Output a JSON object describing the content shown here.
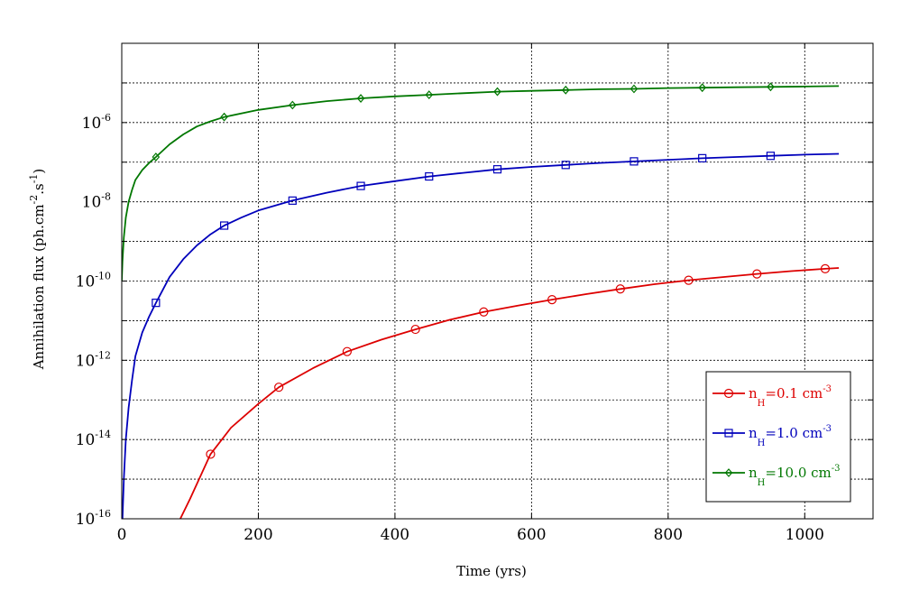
{
  "chart_data": {
    "type": "line",
    "xlabel": "Time (yrs)",
    "ylabel": "Annihilation flux (ph.cm",
    "ylabel_sup1": "-2",
    "ylabel_mid": ".s",
    "ylabel_sup2": "-1",
    "ylabel_end": ")",
    "y_scale": "log",
    "xlim": [
      0,
      1100
    ],
    "ylim": [
      1e-16,
      0.0001
    ],
    "x_ticks": [
      0,
      200,
      400,
      600,
      800,
      1000
    ],
    "x_tick_labels": [
      "0",
      "200",
      "400",
      "600",
      "800",
      "1000"
    ],
    "y_ticks": [
      -16,
      -14,
      -12,
      -10,
      -8,
      -6
    ],
    "y_tick_labels": [
      {
        "base": "10",
        "exp": "-16"
      },
      {
        "base": "10",
        "exp": "-14"
      },
      {
        "base": "10",
        "exp": "-12"
      },
      {
        "base": "10",
        "exp": "-10"
      },
      {
        "base": "10",
        "exp": "-8"
      },
      {
        "base": "10",
        "exp": "-6"
      }
    ],
    "grid": true,
    "legend_position": "bottom-right",
    "series": [
      {
        "name": "n_H=0.1 cm^-3",
        "legend": {
          "prefix": "n",
          "sub": "H",
          "main": "=0.1 cm",
          "sup": "-3"
        },
        "color": "#dd0000",
        "marker": "circle",
        "x": [
          130,
          230,
          330,
          430,
          530,
          630,
          730,
          830,
          930,
          1030
        ],
        "y": [
          -14.37,
          -12.68,
          -11.78,
          -11.22,
          -10.78,
          -10.47,
          -10.2,
          -9.98,
          -9.82,
          -9.69
        ],
        "curve": [
          [
            80,
            -16.2
          ],
          [
            100,
            -15.5
          ],
          [
            130,
            -14.37
          ],
          [
            160,
            -13.7
          ],
          [
            200,
            -13.1
          ],
          [
            230,
            -12.68
          ],
          [
            280,
            -12.2
          ],
          [
            330,
            -11.78
          ],
          [
            380,
            -11.48
          ],
          [
            430,
            -11.22
          ],
          [
            480,
            -10.98
          ],
          [
            530,
            -10.78
          ],
          [
            580,
            -10.62
          ],
          [
            630,
            -10.47
          ],
          [
            680,
            -10.33
          ],
          [
            730,
            -10.2
          ],
          [
            780,
            -10.08
          ],
          [
            830,
            -9.98
          ],
          [
            880,
            -9.9
          ],
          [
            930,
            -9.82
          ],
          [
            980,
            -9.75
          ],
          [
            1030,
            -9.69
          ],
          [
            1050,
            -9.67
          ]
        ]
      },
      {
        "name": "n_H=1.0 cm^-3",
        "legend": {
          "prefix": "n",
          "sub": "H",
          "main": "=1.0 cm",
          "sup": "-3"
        },
        "color": "#0000bb",
        "marker": "square",
        "x": [
          50,
          150,
          250,
          350,
          450,
          550,
          650,
          750,
          850,
          950
        ],
        "y": [
          -10.55,
          -8.6,
          -7.97,
          -7.6,
          -7.36,
          -7.18,
          -7.07,
          -6.98,
          -6.9,
          -6.84
        ],
        "curve": [
          [
            1,
            -16.0
          ],
          [
            3,
            -15.0
          ],
          [
            6,
            -14.0
          ],
          [
            10,
            -13.2
          ],
          [
            15,
            -12.5
          ],
          [
            20,
            -11.9
          ],
          [
            30,
            -11.3
          ],
          [
            40,
            -10.9
          ],
          [
            50,
            -10.55
          ],
          [
            70,
            -9.9
          ],
          [
            90,
            -9.45
          ],
          [
            110,
            -9.1
          ],
          [
            130,
            -8.82
          ],
          [
            150,
            -8.6
          ],
          [
            175,
            -8.4
          ],
          [
            200,
            -8.22
          ],
          [
            250,
            -7.97
          ],
          [
            300,
            -7.77
          ],
          [
            350,
            -7.6
          ],
          [
            400,
            -7.48
          ],
          [
            450,
            -7.36
          ],
          [
            500,
            -7.27
          ],
          [
            550,
            -7.18
          ],
          [
            600,
            -7.12
          ],
          [
            650,
            -7.07
          ],
          [
            700,
            -7.02
          ],
          [
            750,
            -6.98
          ],
          [
            800,
            -6.94
          ],
          [
            850,
            -6.9
          ],
          [
            900,
            -6.87
          ],
          [
            950,
            -6.84
          ],
          [
            1000,
            -6.81
          ],
          [
            1050,
            -6.79
          ]
        ]
      },
      {
        "name": "n_H=10.0 cm^-3",
        "legend": {
          "prefix": "n",
          "sub": "H",
          "main": "=10.0 cm",
          "sup": "-3"
        },
        "color": "#007700",
        "marker": "diamond",
        "x": [
          50,
          150,
          250,
          350,
          450,
          550,
          650,
          750,
          850,
          950
        ],
        "y": [
          -6.87,
          -5.86,
          -5.56,
          -5.39,
          -5.3,
          -5.22,
          -5.18,
          -5.15,
          -5.12,
          -5.1
        ],
        "curve": [
          [
            0,
            -10.0
          ],
          [
            1,
            -9.5
          ],
          [
            3,
            -8.9
          ],
          [
            6,
            -8.4
          ],
          [
            10,
            -8.0
          ],
          [
            15,
            -7.7
          ],
          [
            20,
            -7.45
          ],
          [
            30,
            -7.2
          ],
          [
            40,
            -7.02
          ],
          [
            50,
            -6.87
          ],
          [
            70,
            -6.55
          ],
          [
            90,
            -6.3
          ],
          [
            110,
            -6.1
          ],
          [
            130,
            -5.97
          ],
          [
            150,
            -5.86
          ],
          [
            200,
            -5.68
          ],
          [
            250,
            -5.56
          ],
          [
            300,
            -5.46
          ],
          [
            350,
            -5.39
          ],
          [
            400,
            -5.34
          ],
          [
            450,
            -5.3
          ],
          [
            500,
            -5.26
          ],
          [
            550,
            -5.22
          ],
          [
            600,
            -5.2
          ],
          [
            650,
            -5.18
          ],
          [
            700,
            -5.16
          ],
          [
            750,
            -5.15
          ],
          [
            800,
            -5.13
          ],
          [
            850,
            -5.12
          ],
          [
            900,
            -5.11
          ],
          [
            950,
            -5.1
          ],
          [
            1000,
            -5.09
          ],
          [
            1050,
            -5.08
          ]
        ]
      }
    ]
  }
}
